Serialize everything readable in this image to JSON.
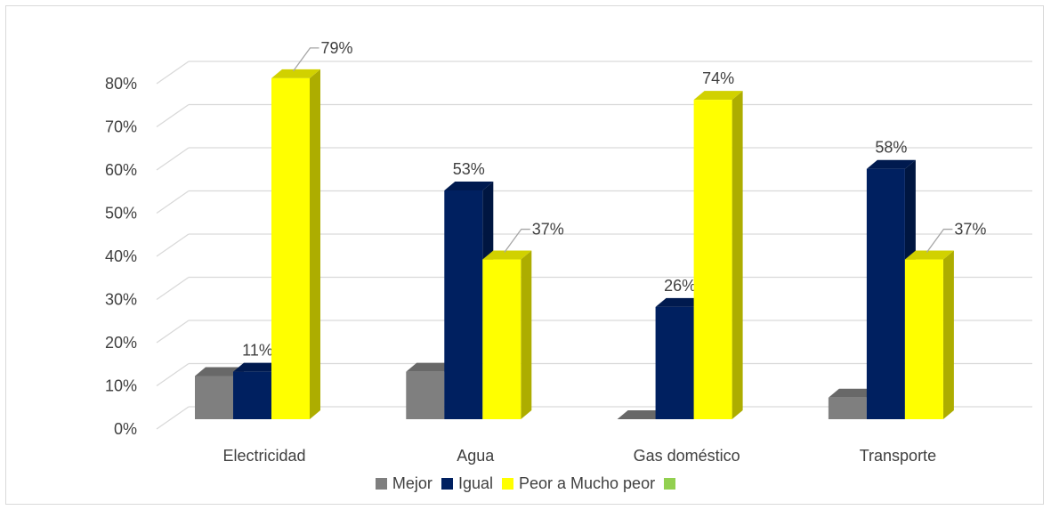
{
  "chart_data": {
    "type": "bar",
    "title": "",
    "xlabel": "",
    "ylabel": "",
    "ylim": [
      0,
      0.8
    ],
    "yticks": [
      "0%",
      "10%",
      "20%",
      "30%",
      "40%",
      "50%",
      "60%",
      "70%",
      "80%"
    ],
    "grid": true,
    "legend_position": "bottom",
    "categories": [
      "Electricidad",
      "Agua",
      "Gas doméstico",
      "Transporte"
    ],
    "series": [
      {
        "name": "Mejor",
        "color": "#7f7f7f",
        "values": [
          0.1,
          0.11,
          0.0,
          0.05
        ],
        "labels": [
          "",
          "",
          "",
          ""
        ]
      },
      {
        "name": "Igual",
        "color": "#002060",
        "values": [
          0.11,
          0.53,
          0.26,
          0.58
        ],
        "labels": [
          "11%",
          "53%",
          "26%",
          "58%"
        ]
      },
      {
        "name": "Peor a Mucho peor",
        "color": "#ffff00",
        "values": [
          0.79,
          0.37,
          0.74,
          0.37
        ],
        "labels": [
          "79%",
          "37%",
          "74%",
          "37%"
        ]
      },
      {
        "name": "",
        "color": "#92d050",
        "values": [
          0,
          0,
          0,
          0
        ],
        "labels": [
          "",
          "",
          "",
          ""
        ]
      }
    ]
  }
}
